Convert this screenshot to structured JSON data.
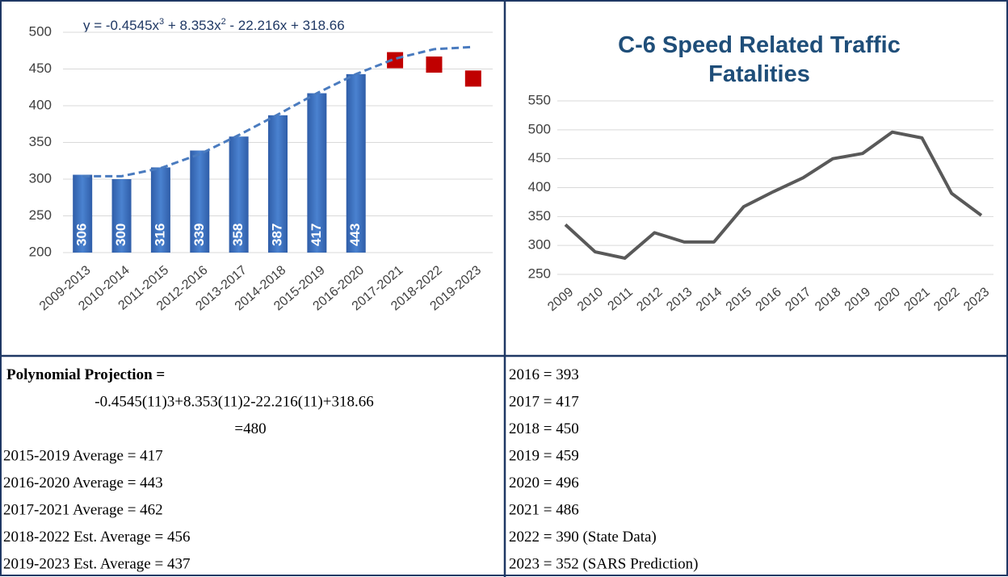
{
  "left_chart": {
    "type": "bar",
    "equation_parts": [
      "y = -0.4545x",
      "3",
      " + 8.353x",
      "2",
      " - 22.216x + 318.66"
    ],
    "categories": [
      "2009-2013",
      "2010-2014",
      "2011-2015",
      "2012-2016",
      "2013-2017",
      "2014-2018",
      "2015-2019",
      "2016-2020",
      "2017-2021",
      "2018-2022",
      "2019-2023"
    ],
    "values": [
      306,
      300,
      316,
      339,
      358,
      387,
      417,
      443,
      null,
      null,
      null
    ],
    "projections": [
      null,
      null,
      null,
      null,
      null,
      null,
      null,
      null,
      462,
      456,
      437
    ],
    "trend": [
      304,
      304,
      315,
      334,
      360,
      388,
      417,
      443,
      464,
      477,
      480
    ],
    "ylim": [
      200,
      500
    ],
    "yticks": [
      200,
      250,
      300,
      350,
      400,
      450,
      500
    ],
    "grid": true,
    "color": "#3a6fc0",
    "projection_color": "#c00000",
    "trend_color": "#4a7bbf"
  },
  "right_chart": {
    "type": "line",
    "title": "C-6 Speed Related Traffic Fatalities",
    "x": [
      2009,
      2010,
      2011,
      2012,
      2013,
      2014,
      2015,
      2016,
      2017,
      2018,
      2019,
      2020,
      2021,
      2022,
      2023
    ],
    "values": [
      336,
      289,
      278,
      322,
      306,
      306,
      367,
      393,
      417,
      450,
      459,
      496,
      486,
      390,
      352
    ],
    "ylim": [
      250,
      550
    ],
    "yticks": [
      250,
      300,
      350,
      400,
      450,
      500,
      550
    ],
    "grid": true,
    "color": "#595959"
  },
  "table": {
    "left": [
      "Polynomial Projection =",
      "-0.4545(11)3+8.353(11)2-22.216(11)+318.66",
      "=480",
      "2015-2019 Average =  417",
      "2016-2020 Average =  443",
      "2017-2021 Average =  462",
      "2018-2022 Est. Average =  456",
      "2019-2023 Est. Average =  437"
    ],
    "right": [
      "2016 = 393",
      "2017 = 417",
      "2018 = 450",
      "2019 = 459",
      "2020 = 496",
      "2021 = 486",
      "2022 = 390 (State Data)",
      "2023 = 352 (SARS Prediction)"
    ]
  }
}
